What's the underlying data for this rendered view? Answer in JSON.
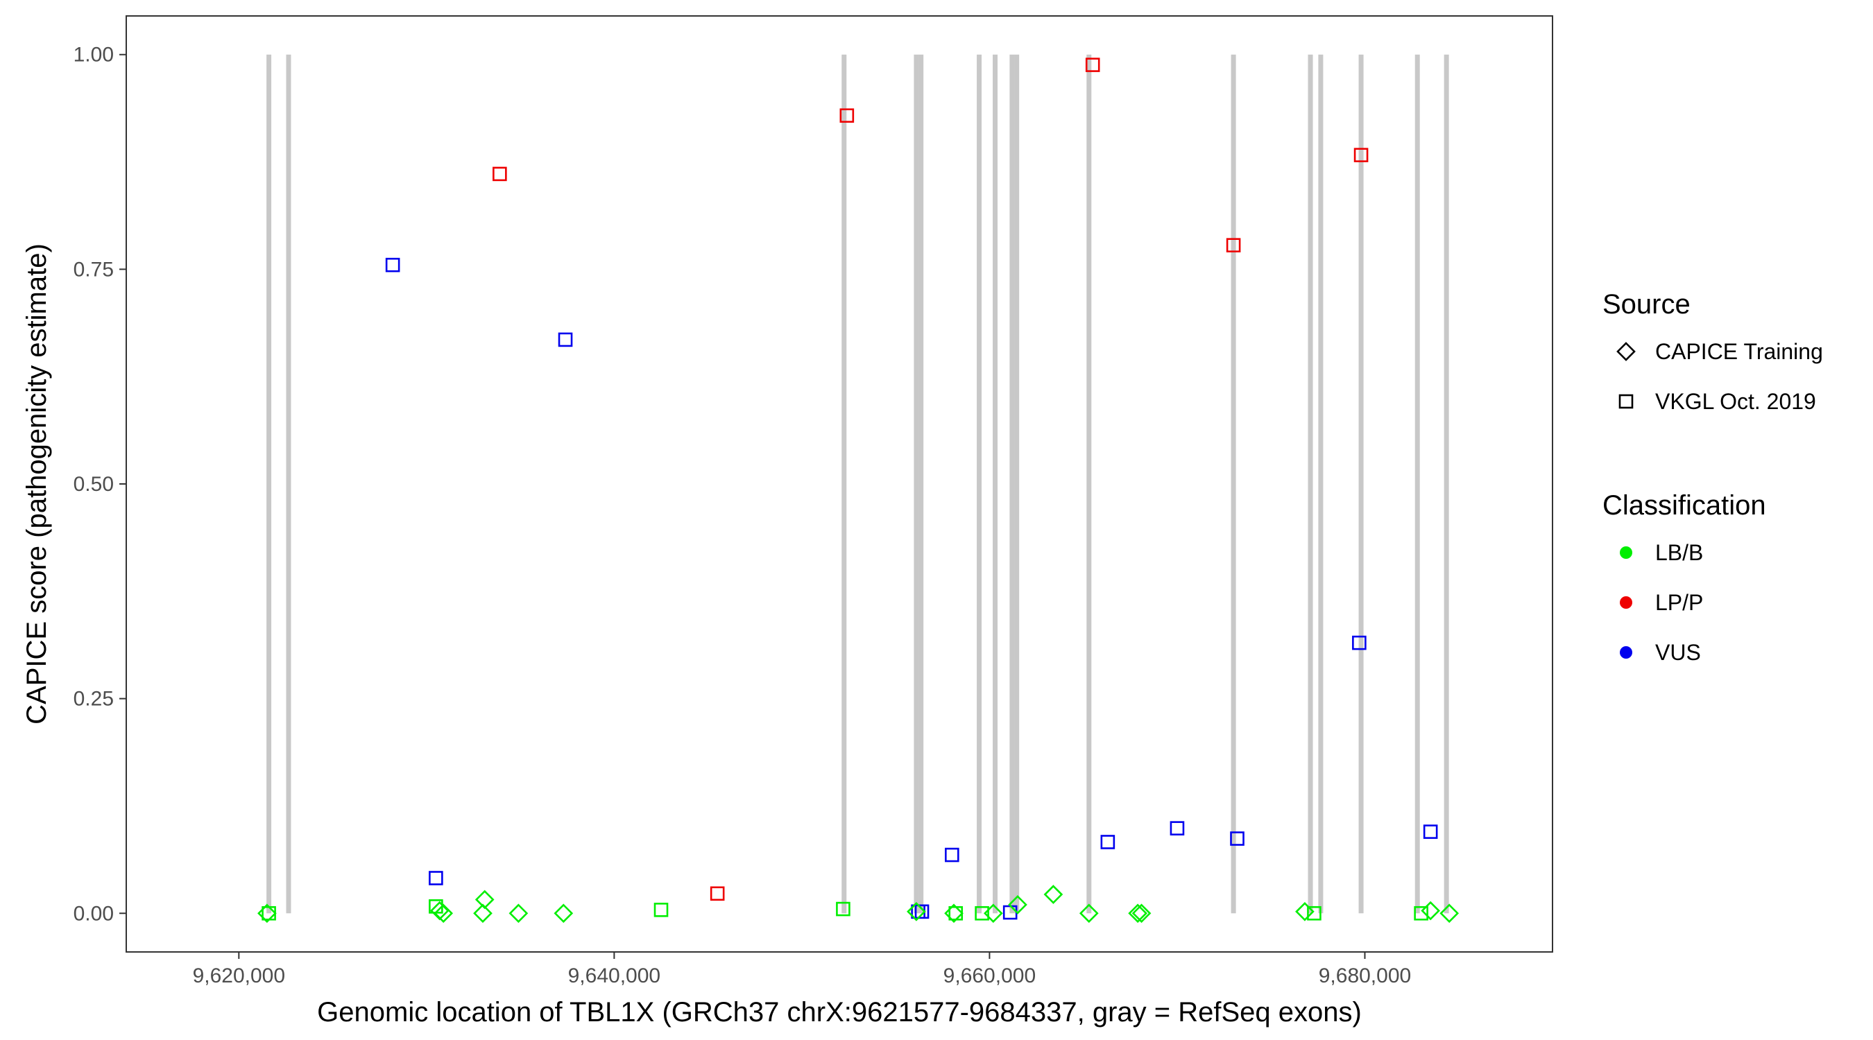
{
  "chart_data": {
    "type": "scatter",
    "title": "",
    "xlabel": "Genomic location of TBL1X (GRCh37 chrX:9621577-9684337, gray = RefSeq exons)",
    "ylabel": "CAPICE score (pathogenicity estimate)",
    "xlim": [
      9614000,
      9690000
    ],
    "ylim": [
      -0.045,
      1.045
    ],
    "x_ticks": [
      9620000,
      9640000,
      9660000,
      9680000
    ],
    "x_tick_labels": [
      "9,620,000",
      "9,640,000",
      "9,660,000",
      "9,680,000"
    ],
    "y_ticks": [
      0,
      0.25,
      0.5,
      0.75,
      1
    ],
    "y_tick_labels": [
      "0.00",
      "0.25",
      "0.50",
      "0.75",
      "1.00"
    ],
    "grid": false,
    "legend_position": "right",
    "exon_color": "#c8c8c8",
    "exons": [
      {
        "x": 9621600,
        "ymin": 0,
        "ymax": 1
      },
      {
        "x": 9622650,
        "ymin": 0,
        "ymax": 1
      },
      {
        "x": 9652250,
        "ymin": 0,
        "ymax": 1
      },
      {
        "x": 9656100,
        "ymin": 0,
        "ymax": 1
      },
      {
        "x": 9656350,
        "ymin": 0,
        "ymax": 1
      },
      {
        "x": 9659450,
        "ymin": 0,
        "ymax": 1
      },
      {
        "x": 9660300,
        "ymin": 0,
        "ymax": 1
      },
      {
        "x": 9661200,
        "ymin": 0,
        "ymax": 1
      },
      {
        "x": 9661450,
        "ymin": 0,
        "ymax": 1
      },
      {
        "x": 9665300,
        "ymin": 0,
        "ymax": 1
      },
      {
        "x": 9673000,
        "ymin": 0,
        "ymax": 1
      },
      {
        "x": 9677100,
        "ymin": 0,
        "ymax": 1
      },
      {
        "x": 9677650,
        "ymin": 0,
        "ymax": 1
      },
      {
        "x": 9679800,
        "ymin": 0,
        "ymax": 1
      },
      {
        "x": 9682800,
        "ymin": 0,
        "ymax": 1
      },
      {
        "x": 9684350,
        "ymin": 0,
        "ymax": 1
      }
    ],
    "legend": {
      "source_title": "Source",
      "source_items": [
        {
          "label": "CAPICE Training",
          "shape": "diamond"
        },
        {
          "label": "VKGL Oct. 2019",
          "shape": "square"
        }
      ],
      "class_title": "Classification",
      "class_items": [
        {
          "label": "LB/B",
          "color": "#00ee00"
        },
        {
          "label": "LP/P",
          "color": "#ee0000"
        },
        {
          "label": "VUS",
          "color": "#0000ee"
        }
      ]
    },
    "points": [
      {
        "x": 9628200,
        "y": 0.755,
        "source": "VKGL Oct. 2019",
        "class": "VUS"
      },
      {
        "x": 9637400,
        "y": 0.668,
        "source": "VKGL Oct. 2019",
        "class": "VUS"
      },
      {
        "x": 9630500,
        "y": 0.041,
        "source": "VKGL Oct. 2019",
        "class": "VUS"
      },
      {
        "x": 9658000,
        "y": 0.068,
        "source": "VKGL Oct. 2019",
        "class": "VUS"
      },
      {
        "x": 9656200,
        "y": 0.002,
        "source": "VKGL Oct. 2019",
        "class": "VUS"
      },
      {
        "x": 9656400,
        "y": 0.002,
        "source": "VKGL Oct. 2019",
        "class": "VUS"
      },
      {
        "x": 9661100,
        "y": 0.001,
        "source": "VKGL Oct. 2019",
        "class": "VUS"
      },
      {
        "x": 9666300,
        "y": 0.083,
        "source": "VKGL Oct. 2019",
        "class": "VUS"
      },
      {
        "x": 9670000,
        "y": 0.099,
        "source": "VKGL Oct. 2019",
        "class": "VUS"
      },
      {
        "x": 9673200,
        "y": 0.087,
        "source": "VKGL Oct. 2019",
        "class": "VUS"
      },
      {
        "x": 9679700,
        "y": 0.315,
        "source": "VKGL Oct. 2019",
        "class": "VUS"
      },
      {
        "x": 9683500,
        "y": 0.095,
        "source": "VKGL Oct. 2019",
        "class": "VUS"
      },
      {
        "x": 9633900,
        "y": 0.861,
        "source": "VKGL Oct. 2019",
        "class": "LP/P"
      },
      {
        "x": 9652400,
        "y": 0.929,
        "source": "VKGL Oct. 2019",
        "class": "LP/P"
      },
      {
        "x": 9665500,
        "y": 0.988,
        "source": "VKGL Oct. 2019",
        "class": "LP/P"
      },
      {
        "x": 9673000,
        "y": 0.778,
        "source": "VKGL Oct. 2019",
        "class": "LP/P"
      },
      {
        "x": 9679800,
        "y": 0.883,
        "source": "VKGL Oct. 2019",
        "class": "LP/P"
      },
      {
        "x": 9645500,
        "y": 0.023,
        "source": "VKGL Oct. 2019",
        "class": "LP/P"
      },
      {
        "x": 9621600,
        "y": 0.0,
        "source": "VKGL Oct. 2019",
        "class": "LB/B"
      },
      {
        "x": 9630500,
        "y": 0.008,
        "source": "VKGL Oct. 2019",
        "class": "LB/B"
      },
      {
        "x": 9642500,
        "y": 0.004,
        "source": "VKGL Oct. 2019",
        "class": "LB/B"
      },
      {
        "x": 9652200,
        "y": 0.005,
        "source": "VKGL Oct. 2019",
        "class": "LB/B"
      },
      {
        "x": 9658200,
        "y": 0.0,
        "source": "VKGL Oct. 2019",
        "class": "LB/B"
      },
      {
        "x": 9659600,
        "y": 0.0,
        "source": "VKGL Oct. 2019",
        "class": "LB/B"
      },
      {
        "x": 9677300,
        "y": 0.0,
        "source": "VKGL Oct. 2019",
        "class": "LB/B"
      },
      {
        "x": 9683000,
        "y": 0.0,
        "source": "VKGL Oct. 2019",
        "class": "LB/B"
      },
      {
        "x": 9621500,
        "y": 0.0,
        "source": "CAPICE Training",
        "class": "LB/B"
      },
      {
        "x": 9630700,
        "y": 0.003,
        "source": "CAPICE Training",
        "class": "LB/B"
      },
      {
        "x": 9630900,
        "y": 0.0,
        "source": "CAPICE Training",
        "class": "LB/B"
      },
      {
        "x": 9633100,
        "y": 0.016,
        "source": "CAPICE Training",
        "class": "LB/B"
      },
      {
        "x": 9633000,
        "y": 0.0,
        "source": "CAPICE Training",
        "class": "LB/B"
      },
      {
        "x": 9634900,
        "y": 0.0,
        "source": "CAPICE Training",
        "class": "LB/B"
      },
      {
        "x": 9637300,
        "y": 0.0,
        "source": "CAPICE Training",
        "class": "LB/B"
      },
      {
        "x": 9656100,
        "y": 0.002,
        "source": "CAPICE Training",
        "class": "LB/B"
      },
      {
        "x": 9658100,
        "y": 0.0,
        "source": "CAPICE Training",
        "class": "LB/B"
      },
      {
        "x": 9660200,
        "y": 0.0,
        "source": "CAPICE Training",
        "class": "LB/B"
      },
      {
        "x": 9661500,
        "y": 0.01,
        "source": "CAPICE Training",
        "class": "LB/B"
      },
      {
        "x": 9663400,
        "y": 0.022,
        "source": "CAPICE Training",
        "class": "LB/B"
      },
      {
        "x": 9665300,
        "y": 0.0,
        "source": "CAPICE Training",
        "class": "LB/B"
      },
      {
        "x": 9667900,
        "y": 0.0,
        "source": "CAPICE Training",
        "class": "LB/B"
      },
      {
        "x": 9668100,
        "y": 0.0,
        "source": "CAPICE Training",
        "class": "LB/B"
      },
      {
        "x": 9676800,
        "y": 0.002,
        "source": "CAPICE Training",
        "class": "LB/B"
      },
      {
        "x": 9683500,
        "y": 0.003,
        "source": "CAPICE Training",
        "class": "LB/B"
      },
      {
        "x": 9684500,
        "y": 0.0,
        "source": "CAPICE Training",
        "class": "LB/B"
      }
    ]
  }
}
